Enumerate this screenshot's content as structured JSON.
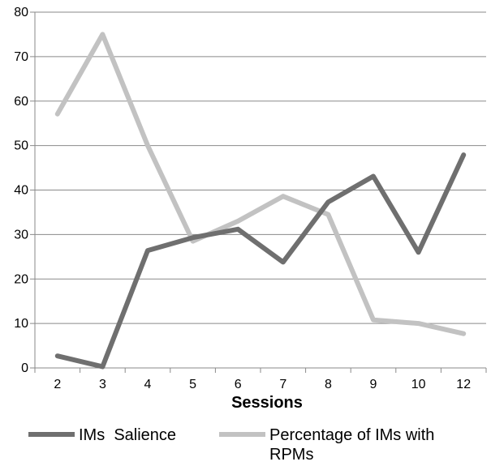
{
  "chart_data": {
    "type": "line",
    "categories": [
      "2",
      "3",
      "4",
      "5",
      "6",
      "7",
      "8",
      "9",
      "10",
      "12"
    ],
    "series": [
      {
        "name": "IMs  Salience",
        "color": "#6f6f6f",
        "values": [
          2.7,
          0.3,
          26.4,
          29.3,
          31.2,
          23.8,
          37.3,
          43.1,
          26.0,
          47.9
        ]
      },
      {
        "name": "Percentage of IMs with RPMs",
        "color": "#c2c2c2",
        "values": [
          57.1,
          75.0,
          50.0,
          28.5,
          33.0,
          38.6,
          34.5,
          10.8,
          10.0,
          7.7
        ]
      }
    ],
    "xlabel": "Sessions",
    "ylabel": "",
    "ylim": [
      0,
      80
    ],
    "yticks": [
      0,
      10,
      20,
      30,
      40,
      50,
      60,
      70,
      80
    ],
    "grid": true,
    "legend_position": "bottom"
  }
}
